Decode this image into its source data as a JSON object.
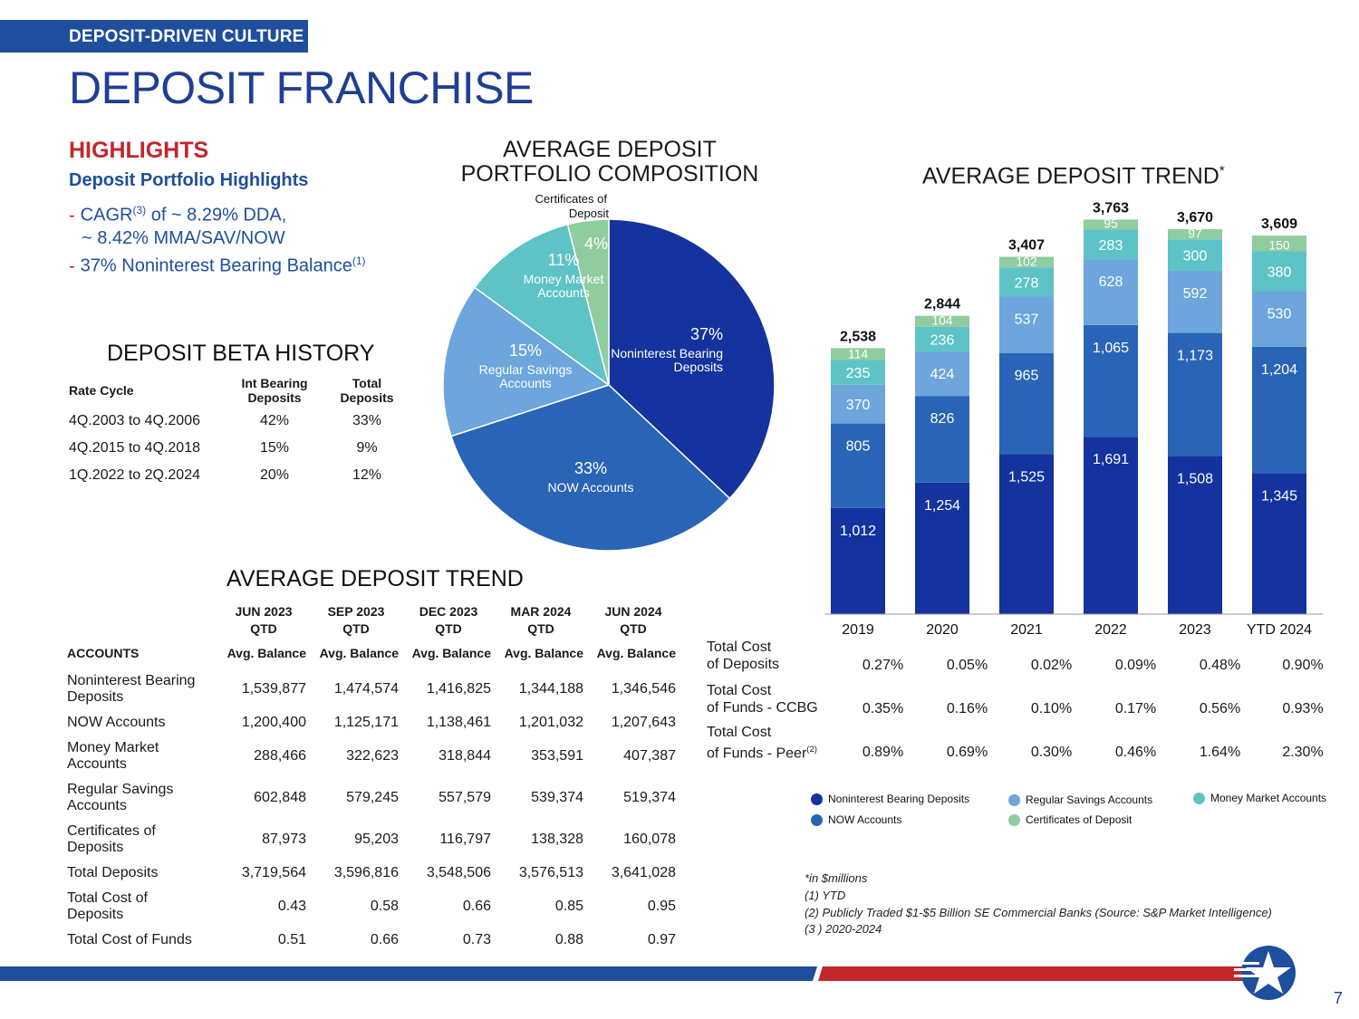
{
  "header": {
    "tag": "DEPOSIT-DRIVEN CULTURE",
    "title": "DEPOSIT FRANCHISE"
  },
  "highlights": {
    "title": "HIGHLIGHTS",
    "subtitle": "Deposit Portfolio Highlights",
    "item1_pre": "CAGR",
    "item1_sup": "(3)",
    "item1_line1": " of ~ 8.29% DDA,",
    "item1_line2": "~ 8.42% MMA/SAV/NOW",
    "item2": "37% Noninterest Bearing Balance",
    "item2_sup": "(1)",
    "dash": "-"
  },
  "beta": {
    "title": "DEPOSIT BETA HISTORY",
    "headers": [
      "Rate Cycle",
      "Int Bearing Deposits",
      "Total Deposits"
    ],
    "rows": [
      [
        "4Q.2003 to 4Q.2006",
        "42%",
        "33%"
      ],
      [
        "4Q.2015 to 4Q.2018",
        "15%",
        "9%"
      ],
      [
        "1Q.2022 to 2Q.2024",
        "20%",
        "12%"
      ]
    ]
  },
  "composition": {
    "title_line1": "AVERAGE DEPOSIT",
    "title_line2": "PORTFOLIO COMPOSITION",
    "slices": [
      {
        "pct": "37%",
        "label1": "Noninterest Bearing",
        "label2": "Deposits",
        "value": 37,
        "color": "#14339e"
      },
      {
        "pct": "33%",
        "label1": "NOW Accounts",
        "label2": "",
        "value": 33,
        "color": "#2a64b6"
      },
      {
        "pct": "15%",
        "label1": "Regular Savings",
        "label2": "Accounts",
        "value": 15,
        "color": "#6da5dc"
      },
      {
        "pct": "11%",
        "label1": "Money Market",
        "label2": "Accounts",
        "value": 11,
        "color": "#5dc3c6"
      },
      {
        "pct": "4%",
        "label1": "Certificates of",
        "label2": "Deposit",
        "value": 4,
        "color": "#8fcc9e"
      }
    ]
  },
  "chart_data": {
    "type": "bar",
    "title": "AVERAGE DEPOSIT TREND",
    "title_sup": "*",
    "categories": [
      "2019",
      "2020",
      "2021",
      "2022",
      "2023",
      "YTD 2024"
    ],
    "totals": [
      "2,538",
      "2,844",
      "3,407",
      "3,763",
      "3,670",
      "3,609"
    ],
    "totals_values": [
      2538,
      2844,
      3407,
      3763,
      3670,
      3609
    ],
    "ylim": [
      0,
      3800
    ],
    "series": [
      {
        "name": "Noninterest Bearing Deposits",
        "color": "#14339e",
        "text_color": "#ffffff",
        "values": [
          1012,
          1254,
          1525,
          1691,
          1508,
          1345
        ],
        "labels": [
          "1,012",
          "1,254",
          "1,525",
          "1,691",
          "1,508",
          "1,345"
        ]
      },
      {
        "name": "NOW Accounts",
        "color": "#2a64b6",
        "text_color": "#ffffff",
        "values": [
          805,
          826,
          965,
          1065,
          1173,
          1204
        ],
        "labels": [
          "805",
          "826",
          "965",
          "1,065",
          "1,173",
          "1,204"
        ]
      },
      {
        "name": "Regular Savings Accounts",
        "color": "#6da5dc",
        "text_color": "#ffffff",
        "values": [
          370,
          424,
          537,
          628,
          592,
          530
        ],
        "labels": [
          "370",
          "424",
          "537",
          "628",
          "592",
          "530"
        ]
      },
      {
        "name": "Money Market Accounts",
        "color": "#5dc3c6",
        "text_color": "#ffffff",
        "values": [
          235,
          236,
          278,
          283,
          300,
          380
        ],
        "labels": [
          "235",
          "236",
          "278",
          "283",
          "300",
          "380"
        ]
      },
      {
        "name": "Certificates of Deposit",
        "color": "#8fcc9e",
        "text_color": "#ffffff",
        "values": [
          114,
          104,
          102,
          95,
          97,
          150
        ],
        "labels": [
          "114",
          "104",
          "102",
          "95",
          "97",
          "150"
        ]
      }
    ],
    "legend": [
      "Noninterest Bearing Deposits",
      "Regular Savings Accounts",
      "Money Market Accounts",
      "NOW Accounts",
      "Certificates of Deposit"
    ]
  },
  "cost_rows": [
    {
      "label1": "Total Cost",
      "label2": "of Deposits",
      "sup": "",
      "values": [
        "0.27%",
        "0.05%",
        "0.02%",
        "0.09%",
        "0.48%",
        "0.90%"
      ]
    },
    {
      "label1": "Total Cost",
      "label2": "of Funds - CCBG",
      "sup": "",
      "values": [
        "0.35%",
        "0.16%",
        "0.10%",
        "0.17%",
        "0.56%",
        "0.93%"
      ]
    },
    {
      "label1": "Total Cost",
      "label2": "of Funds - Peer",
      "sup": "(2)",
      "values": [
        "0.89%",
        "0.69%",
        "0.30%",
        "0.46%",
        "1.64%",
        "2.30%"
      ]
    }
  ],
  "accounts": {
    "title": "AVERAGE DEPOSIT TREND",
    "periods": [
      {
        "line1": "JUN 2023",
        "line2": "QTD"
      },
      {
        "line1": "SEP 2023",
        "line2": "QTD"
      },
      {
        "line1": "DEC 2023",
        "line2": "QTD"
      },
      {
        "line1": "MAR 2024",
        "line2": "QTD"
      },
      {
        "line1": "JUN 2024",
        "line2": "QTD"
      }
    ],
    "col_label": "ACCOUNTS",
    "sub_header": "Avg. Balance",
    "rows": [
      {
        "name1": "Noninterest Bearing",
        "name2": "Deposits",
        "values": [
          "1,539,877",
          "1,474,574",
          "1,416,825",
          "1,344,188",
          "1,346,546"
        ]
      },
      {
        "name1": "NOW Accounts",
        "name2": "",
        "values": [
          "1,200,400",
          "1,125,171",
          "1,138,461",
          "1,201,032",
          "1,207,643"
        ]
      },
      {
        "name1": "Money Market",
        "name2": "Accounts",
        "values": [
          "288,466",
          "322,623",
          "318,844",
          "353,591",
          "407,387"
        ]
      },
      {
        "name1": "Regular Savings",
        "name2": "Accounts",
        "values": [
          "602,848",
          "579,245",
          "557,579",
          "539,374",
          "519,374"
        ]
      },
      {
        "name1": "Certificates of",
        "name2": "Deposits",
        "values": [
          "87,973",
          "95,203",
          "116,797",
          "138,328",
          "160,078"
        ]
      },
      {
        "name1": "Total Deposits",
        "name2": "",
        "values": [
          "3,719,564",
          "3,596,816",
          "3,548,506",
          "3,576,513",
          "3,641,028"
        ]
      },
      {
        "name1": "Total Cost of",
        "name2": "Deposits",
        "values": [
          "0.43",
          "0.58",
          "0.66",
          "0.85",
          "0.95"
        ]
      },
      {
        "name1": "Total Cost of Funds",
        "name2": "",
        "values": [
          "0.51",
          "0.66",
          "0.73",
          "0.88",
          "0.97"
        ]
      }
    ]
  },
  "footnotes": [
    "*in $millions",
    "(1) YTD",
    "(2) Publicly Traded $1-$5 Billion SE Commercial Banks (Source: S&P Market Intelligence)",
    "(3 ) 2020-2024"
  ],
  "page_number": "7",
  "colors": {
    "navy": "#1f3f93",
    "red": "#c1272d",
    "blue_bar": "#1f4e9c"
  }
}
